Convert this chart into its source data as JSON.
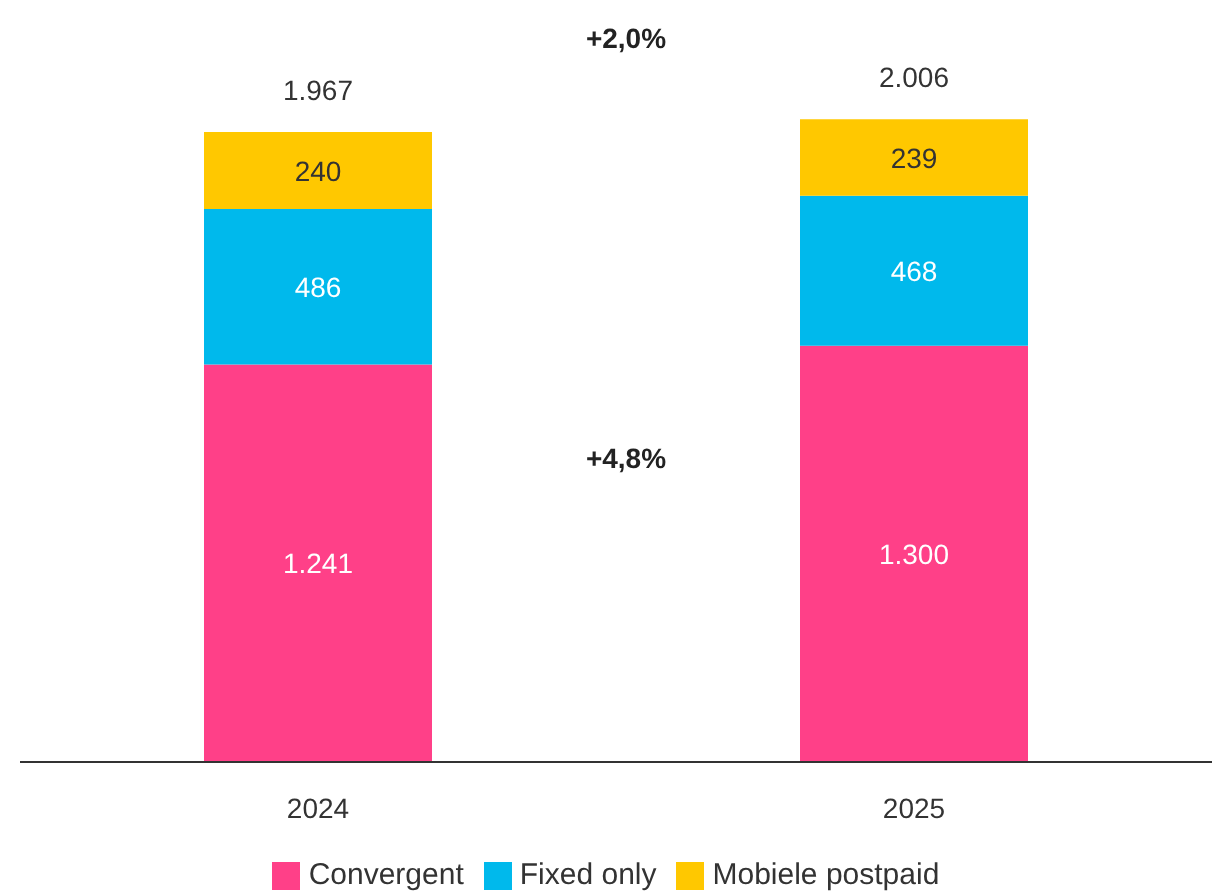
{
  "chart_data": {
    "type": "bar",
    "stacked": true,
    "categories": [
      "2024",
      "2025"
    ],
    "series": [
      {
        "name": "Convergent",
        "color": "#ff4088",
        "values": [
          1241,
          1300
        ],
        "value_labels": [
          "1.241",
          "1.300"
        ]
      },
      {
        "name": "Fixed only",
        "color": "#00b9ec",
        "values": [
          486,
          468
        ],
        "value_labels": [
          "486",
          "468"
        ]
      },
      {
        "name": "Mobiele postpaid",
        "color": "#ffc800",
        "values": [
          240,
          239
        ],
        "value_labels": [
          "240",
          "239"
        ]
      }
    ],
    "totals": [
      "1.967",
      "2.006"
    ],
    "annotations": [
      "+2,0%",
      "+4,8%"
    ],
    "legend": "bottom",
    "grid": false
  }
}
